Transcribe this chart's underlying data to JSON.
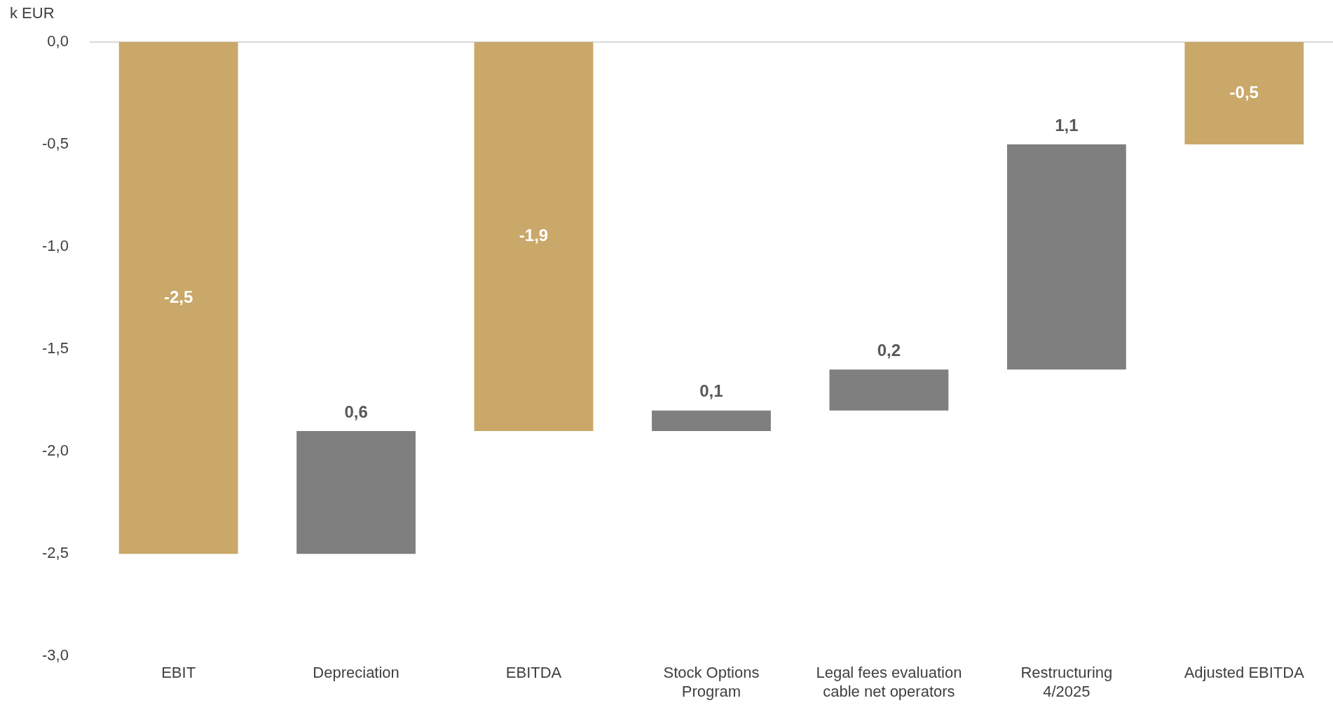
{
  "chart_data": {
    "type": "bar",
    "ylabel": "k EUR",
    "categories": [
      "EBIT",
      "Depreciation",
      "EBITDA",
      "Stock Options\nProgram",
      "Legal fees evaluation\ncable net operators",
      "Restructuring\n4/2025",
      "Adjusted EBITDA"
    ],
    "values": [
      -2.5,
      0.6,
      -1.9,
      0.1,
      0.2,
      1.1,
      -0.5
    ],
    "base": [
      0,
      -2.5,
      0,
      -1.9,
      -1.8,
      -1.6,
      0
    ],
    "colors": [
      "#c9a869",
      "#7f7f7f",
      "#c9a869",
      "#7f7f7f",
      "#7f7f7f",
      "#7f7f7f",
      "#c9a869"
    ],
    "value_labels": [
      "-2,5",
      "0,6",
      "-1,9",
      "0,1",
      "0,2",
      "1,1",
      "-0,5"
    ],
    "ylim": [
      -3,
      0
    ],
    "yticks": [
      {
        "value": 0,
        "label": "0,0"
      },
      {
        "value": -0.5,
        "label": "-0,5"
      },
      {
        "value": -1,
        "label": "-1,0"
      },
      {
        "value": -1.5,
        "label": "-1,5"
      },
      {
        "value": -2,
        "label": "-2,0"
      },
      {
        "value": -2.5,
        "label": "-2,5"
      },
      {
        "value": -3,
        "label": "-3,0"
      }
    ],
    "ref_lines": [
      {
        "axis": "y",
        "value": 0,
        "color": "#d9d9d9"
      }
    ],
    "grid": false,
    "legend": false
  }
}
